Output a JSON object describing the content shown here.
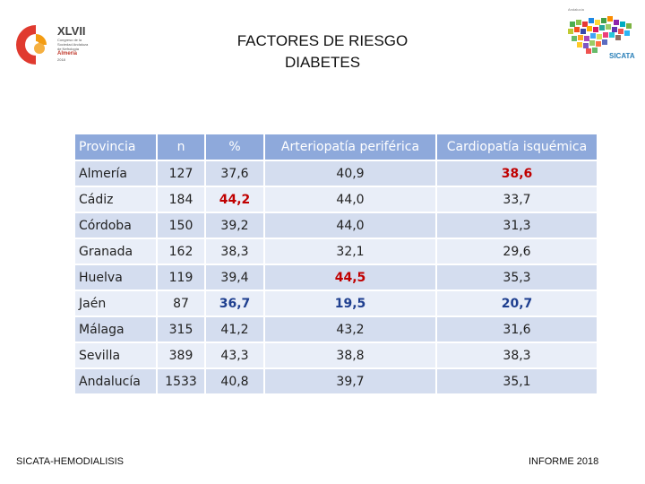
{
  "header": {
    "title_line1": "FACTORES DE RIESGO",
    "title_line2": "DIABETES"
  },
  "logo_left": {
    "number": "XLVII",
    "lines": [
      "Congreso de la",
      "Sociedad Andaluza",
      "de Nefrología"
    ],
    "city": "Almería",
    "date": "2018"
  },
  "logo_right": {
    "top_text": "Andalucía",
    "name": "SICATA"
  },
  "table": {
    "headers": [
      "Provincia",
      "n",
      "%",
      "Arteriopatía periférica",
      "Cardiopatía isquémica"
    ],
    "rows": [
      {
        "provincia": "Almería",
        "n": "127",
        "pct": "37,6",
        "art": "40,9",
        "card": "38,6"
      },
      {
        "provincia": "Cádiz",
        "n": "184",
        "pct": "44,2",
        "art": "44,0",
        "card": "33,7"
      },
      {
        "provincia": "Córdoba",
        "n": "150",
        "pct": "39,2",
        "art": "44,0",
        "card": "31,3"
      },
      {
        "provincia": "Granada",
        "n": "162",
        "pct": "38,3",
        "art": "32,1",
        "card": "29,6"
      },
      {
        "provincia": "Huelva",
        "n": "119",
        "pct": "39,4",
        "art": "44,5",
        "card": "35,3"
      },
      {
        "provincia": "Jaén",
        "n": "87",
        "pct": "36,7",
        "art": "19,5",
        "card": "20,7"
      },
      {
        "provincia": "Málaga",
        "n": "315",
        "pct": "41,2",
        "art": "43,2",
        "card": "31,6"
      },
      {
        "provincia": "Sevilla",
        "n": "389",
        "pct": "43,3",
        "art": "38,8",
        "card": "38,3"
      },
      {
        "provincia": "Andalucía",
        "n": "1533",
        "pct": "40,8",
        "art": "39,7",
        "card": "35,1"
      }
    ]
  },
  "highlight_colors": {
    "high": "#c00000",
    "low": "#1f3f8f"
  },
  "footer": {
    "left": "SICATA-HEMODIALISIS",
    "right": "INFORME 2018"
  }
}
